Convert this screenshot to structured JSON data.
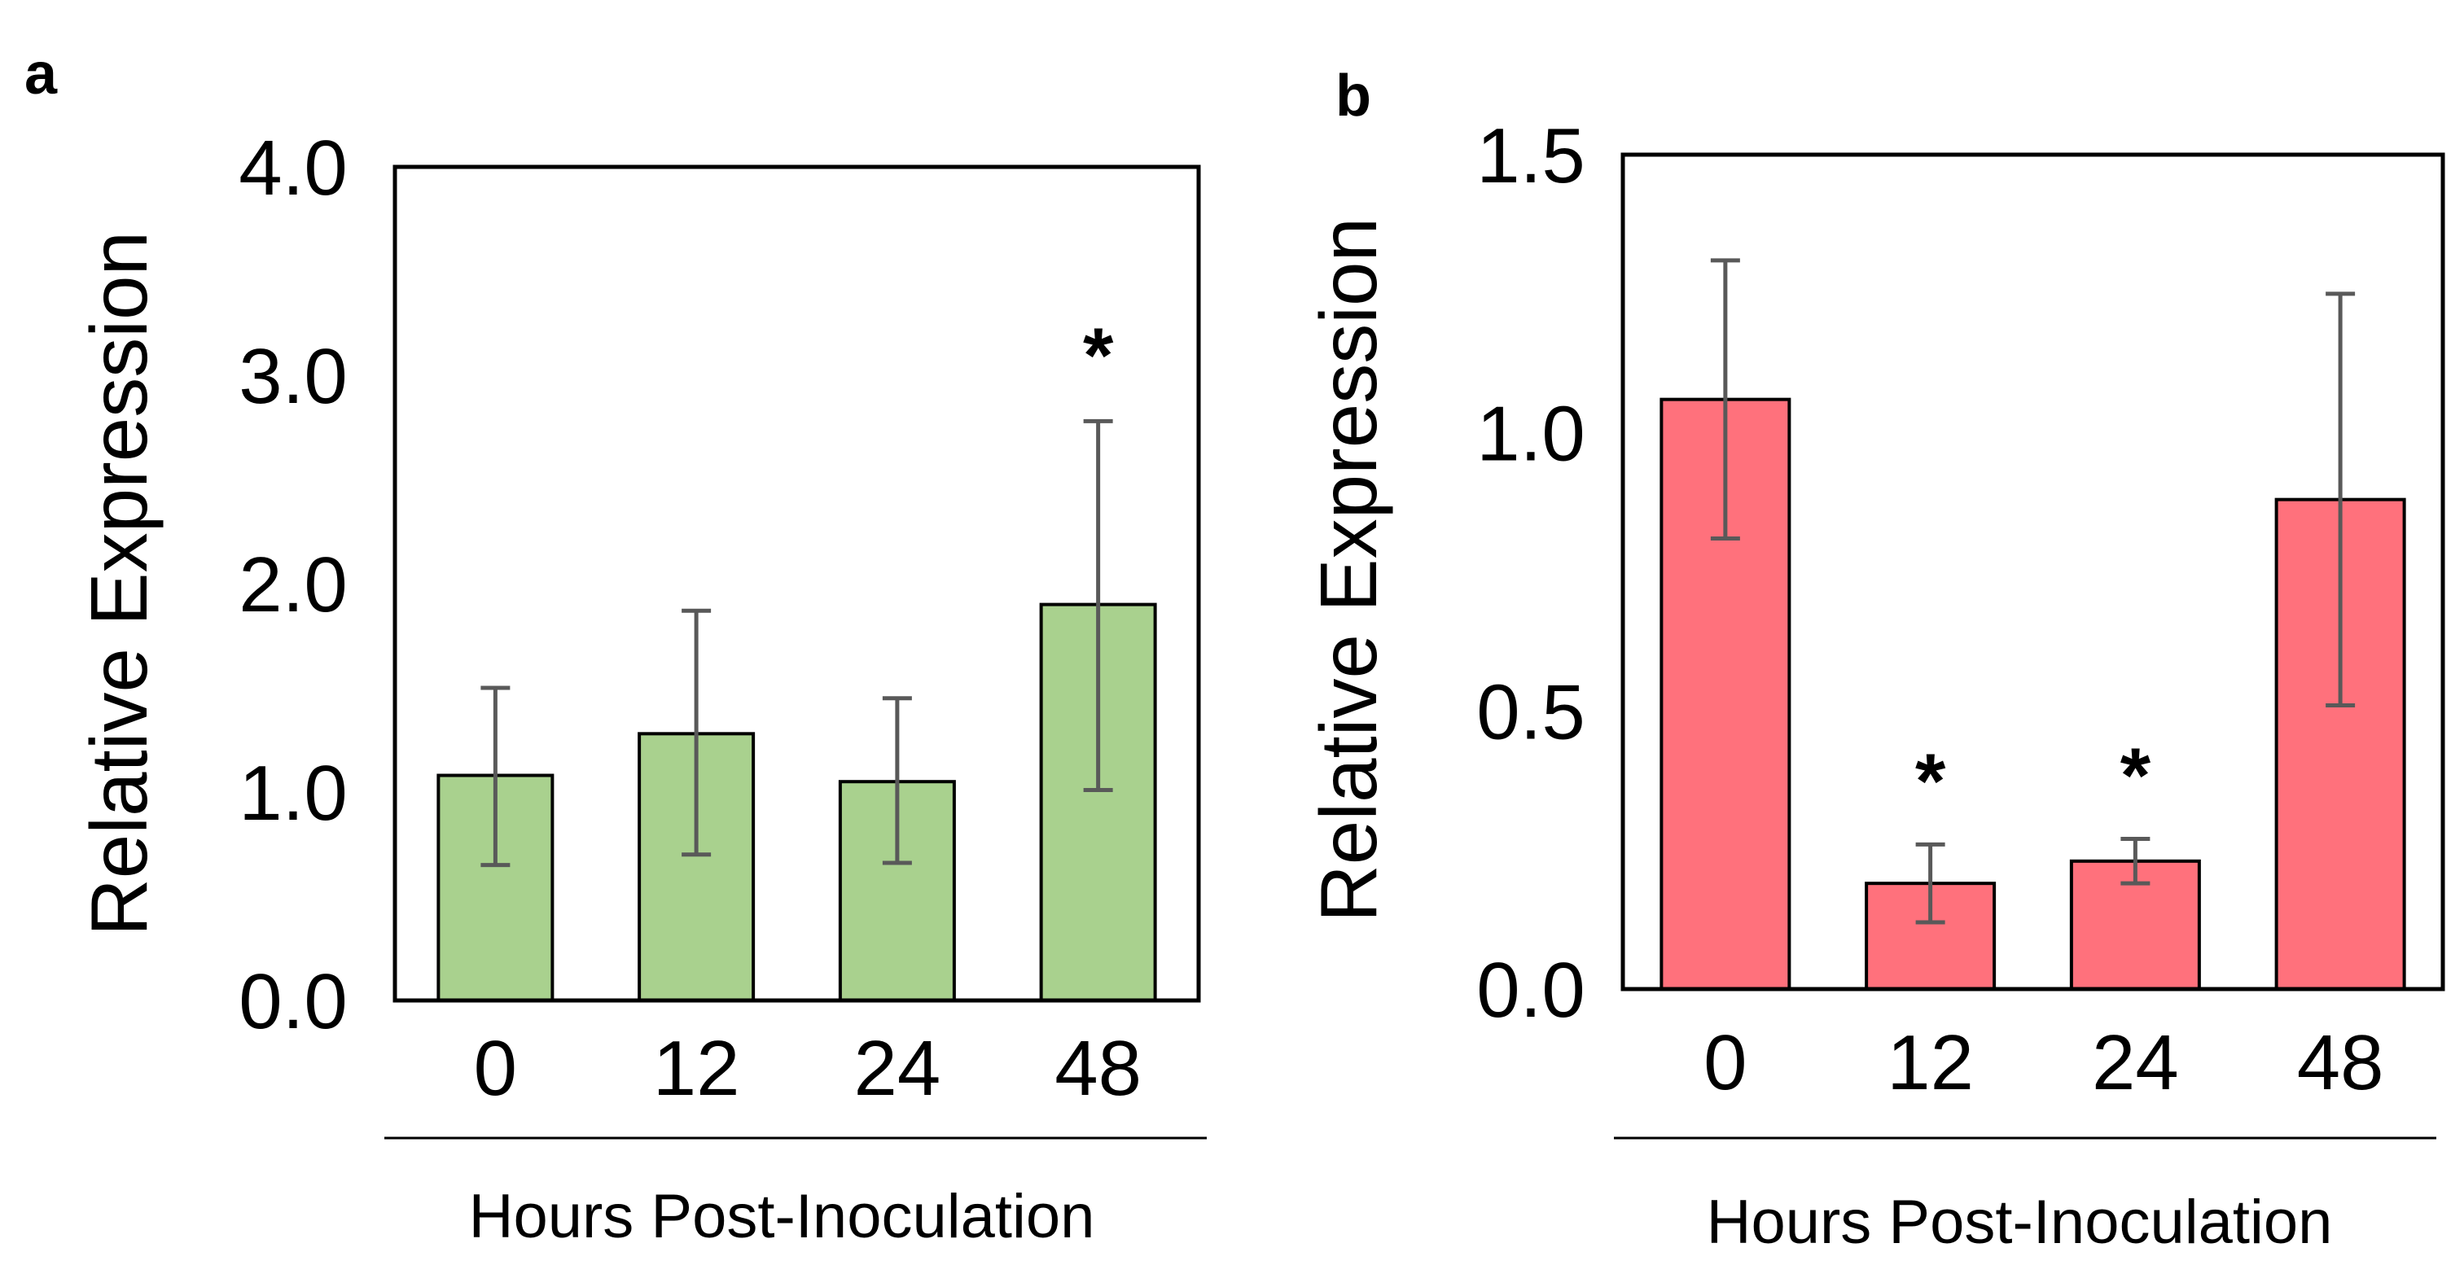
{
  "chart_data": [
    {
      "type": "bar",
      "panel_label": "a",
      "categories": [
        "0",
        "12",
        "24",
        "48"
      ],
      "values": [
        1.08,
        1.28,
        1.05,
        1.9
      ],
      "error_low": [
        0.65,
        0.7,
        0.66,
        1.01
      ],
      "error_high": [
        1.5,
        1.87,
        1.45,
        2.78
      ],
      "significance": [
        "",
        "",
        "",
        "*"
      ],
      "ylim": [
        0,
        4
      ],
      "yticks": [
        "0.0",
        "1.0",
        "2.0",
        "3.0",
        "4.0"
      ],
      "ylabel": "Relative Expression",
      "xlabel": "Hours Post-Inoculation",
      "bar_color": "#a9d18e",
      "grid": false,
      "legend": "none"
    },
    {
      "type": "bar",
      "panel_label": "b",
      "categories": [
        "0",
        "12",
        "24",
        "48"
      ],
      "values": [
        1.06,
        0.19,
        0.23,
        0.88
      ],
      "error_low": [
        0.81,
        0.12,
        0.19,
        0.51
      ],
      "error_high": [
        1.31,
        0.26,
        0.27,
        1.25
      ],
      "significance": [
        "",
        "*",
        "*",
        ""
      ],
      "ylim": [
        0,
        1.5
      ],
      "yticks": [
        "0.0",
        "0.5",
        "1.0",
        "1.5"
      ],
      "ylabel": "Relative Expression",
      "xlabel": "Hours Post-Inoculation",
      "bar_color": "#ff717c",
      "grid": false,
      "legend": "none"
    }
  ]
}
